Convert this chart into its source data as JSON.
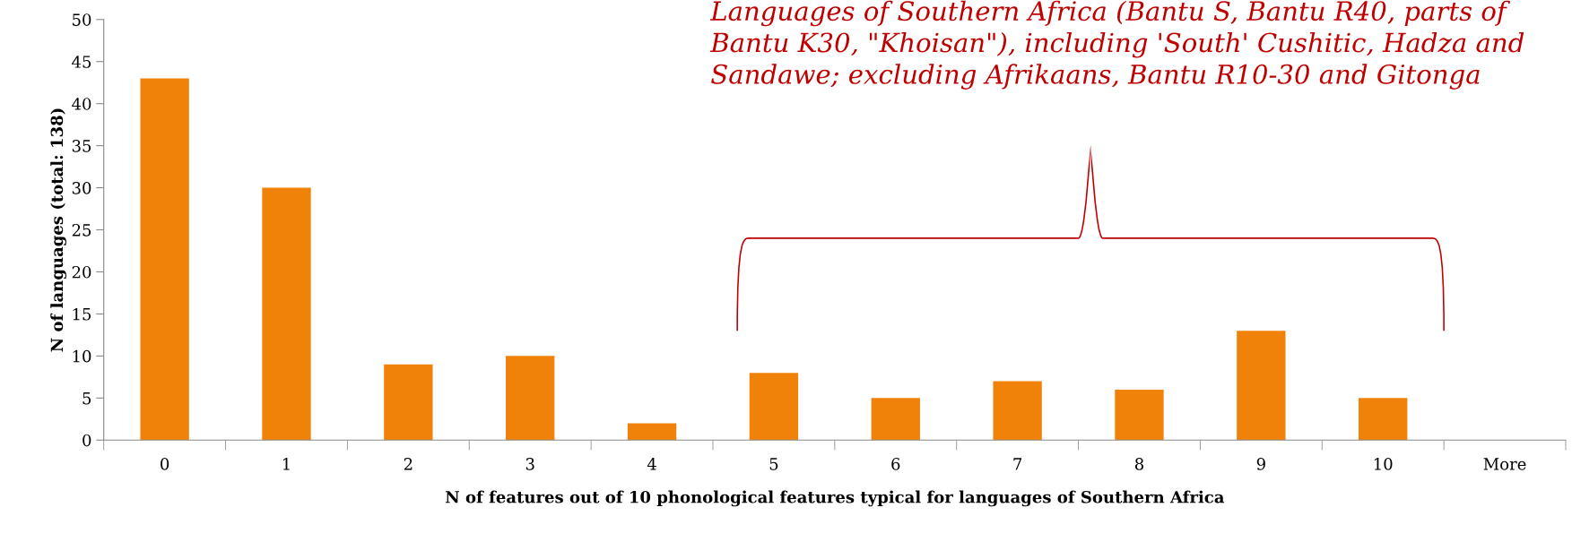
{
  "chart_data": {
    "type": "bar",
    "xlabel": "N of features out of 10 phonological features typical for languages of Southern Africa",
    "ylabel": "N of languages (total: 138)",
    "categories": [
      "0",
      "1",
      "2",
      "3",
      "4",
      "5",
      "6",
      "7",
      "8",
      "9",
      "10",
      "More"
    ],
    "values": [
      43,
      30,
      9,
      10,
      2,
      8,
      5,
      7,
      6,
      13,
      5,
      0
    ],
    "color": "#f0820a",
    "ylim": [
      0,
      50
    ],
    "yticks": [
      0,
      5,
      10,
      15,
      20,
      25,
      30,
      35,
      40,
      45,
      50
    ],
    "grid": false,
    "legend": false,
    "annotations": [
      "Languages of Southern Africa (Bantu S, Bantu R40, parts of Bantu K30, \"Khoisan\"), including 'South' Cushitic, Hadza and Sandawe; excluding Afrikaans, Bantu R10-30 and Gitonga"
    ]
  }
}
